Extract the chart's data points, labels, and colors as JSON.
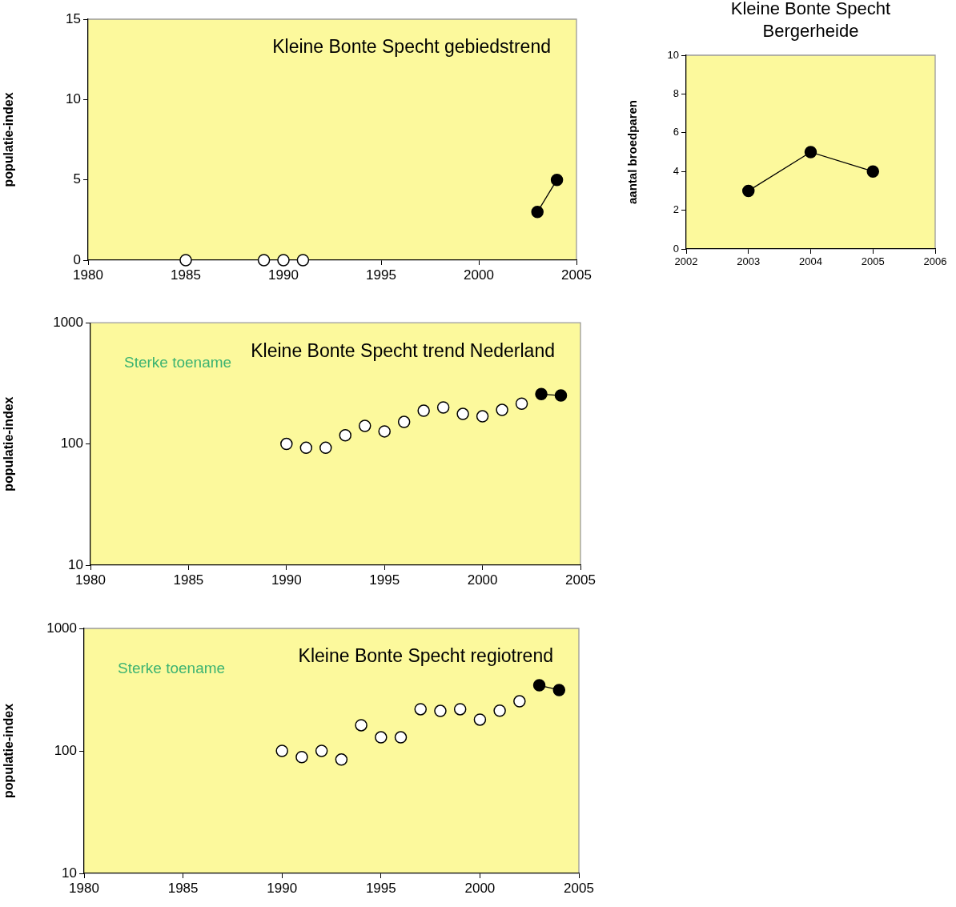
{
  "chart_data": [
    {
      "type": "line",
      "title": "Kleine Bonte Specht gebiedstrend",
      "ylabel": "populatie-index",
      "xlim": [
        1980,
        2005
      ],
      "xticks": [
        1980,
        1985,
        1990,
        1995,
        2000,
        2005
      ],
      "ylim": [
        0,
        15
      ],
      "yticks": [
        0,
        5,
        10,
        15
      ],
      "grid": false,
      "marker": "circle",
      "series": [
        {
          "type": "scatter",
          "color": "#ffffff",
          "x": [
            1985,
            1989,
            1990,
            1991
          ],
          "values": [
            0,
            0,
            0,
            0
          ]
        },
        {
          "type": "line",
          "color": "#000000",
          "x": [
            2003,
            2004
          ],
          "values": [
            3,
            5
          ]
        }
      ]
    },
    {
      "type": "line",
      "title": "Kleine Bonte Specht\nBergerheide",
      "ylabel": "aantal broedparen",
      "xlim": [
        2002,
        2006
      ],
      "xticks": [
        2002,
        2003,
        2004,
        2005,
        2006
      ],
      "ylim": [
        0,
        10
      ],
      "yticks": [
        0,
        2,
        4,
        6,
        8,
        10
      ],
      "grid": false,
      "marker": "circle",
      "series": [
        {
          "type": "line",
          "color": "#000000",
          "x": [
            2003,
            2004,
            2005
          ],
          "values": [
            3,
            5,
            4
          ]
        }
      ]
    },
    {
      "type": "line",
      "title": "Kleine Bonte Specht trend Nederland",
      "ylabel": "populatie-index",
      "annotations": [
        "Sterke toename"
      ],
      "log": "y",
      "xlim": [
        1980,
        2005
      ],
      "xticks": [
        1980,
        1985,
        1990,
        1995,
        2000,
        2005
      ],
      "ylim": [
        10,
        1000
      ],
      "yticks": [
        10,
        100,
        1000
      ],
      "grid": false,
      "marker": "circle",
      "series": [
        {
          "type": "scatter",
          "color": "#ffffff",
          "x": [
            1990,
            1991,
            1992,
            1993,
            1994,
            1995,
            1996,
            1997,
            1998,
            1999,
            2000,
            2001,
            2002
          ],
          "values": [
            100,
            93,
            93,
            118,
            141,
            127,
            152,
            188,
            200,
            177,
            169,
            191,
            215
          ]
        },
        {
          "type": "line",
          "color": "#000000",
          "x": [
            2003,
            2004
          ],
          "values": [
            258,
            251
          ]
        }
      ]
    },
    {
      "type": "line",
      "title": "Kleine Bonte Specht regiotrend",
      "ylabel": "populatie-index",
      "annotations": [
        "Sterke toename"
      ],
      "log": "y",
      "xlim": [
        1980,
        2005
      ],
      "xticks": [
        1980,
        1985,
        1990,
        1995,
        2000,
        2005
      ],
      "ylim": [
        10,
        1000
      ],
      "yticks": [
        10,
        100,
        1000
      ],
      "grid": false,
      "marker": "circle",
      "series": [
        {
          "type": "scatter",
          "color": "#ffffff",
          "x": [
            1990,
            1991,
            1992,
            1993,
            1994,
            1995,
            1996,
            1997,
            1998,
            1999,
            2000,
            2001,
            2002
          ],
          "values": [
            100,
            89,
            100,
            85,
            162,
            129,
            129,
            219,
            212,
            219,
            180,
            213,
            254
          ]
        },
        {
          "type": "line",
          "color": "#000000",
          "x": [
            2003,
            2004
          ],
          "values": [
            343,
            314
          ]
        }
      ]
    }
  ]
}
